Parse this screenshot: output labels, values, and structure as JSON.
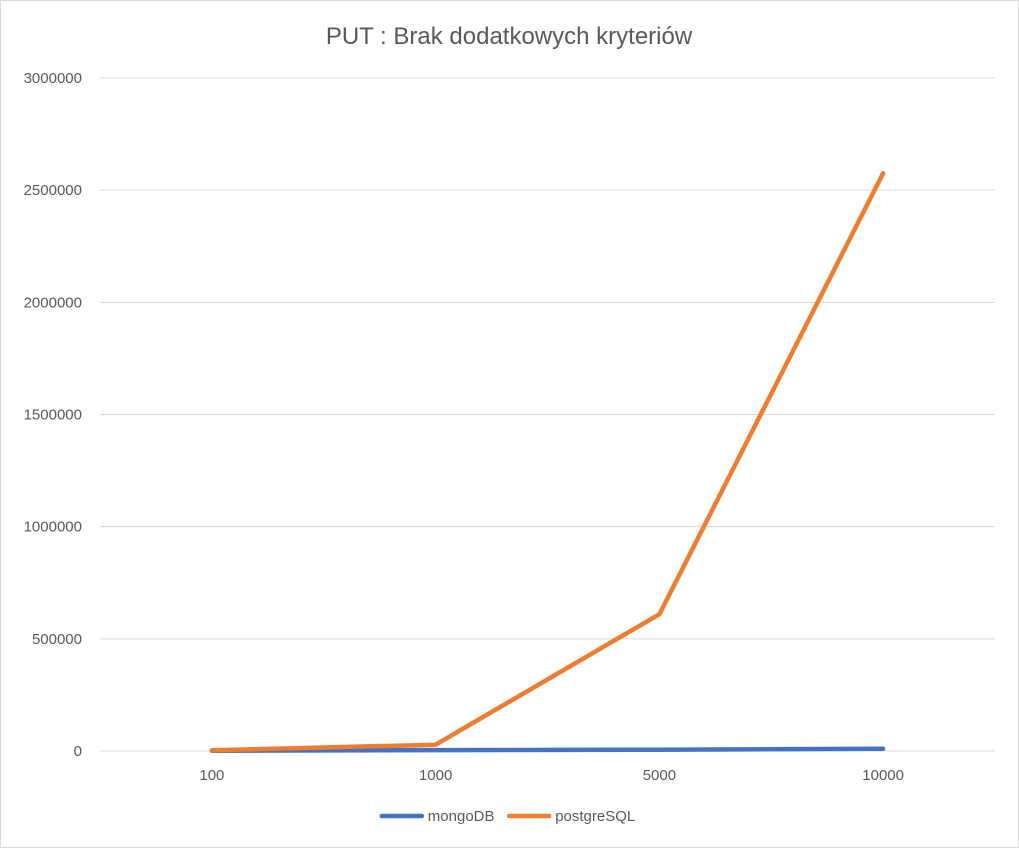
{
  "chart_data": {
    "type": "line",
    "title": "PUT : Brak dodatkowych kryteriów",
    "xlabel": "",
    "ylabel": "",
    "categories": [
      "100",
      "1000",
      "5000",
      "10000"
    ],
    "ylim": [
      0,
      3000000
    ],
    "yticks": [
      0,
      500000,
      1000000,
      1500000,
      2000000,
      2500000,
      3000000
    ],
    "ytick_labels": [
      "0",
      "500000",
      "1000000",
      "1500000",
      "2000000",
      "2500000",
      "3000000"
    ],
    "grid": true,
    "legend_position": "bottom",
    "series": [
      {
        "name": "mongoDB",
        "color": "#4472c4",
        "values": [
          1000,
          4000,
          6000,
          10000
        ]
      },
      {
        "name": "postgreSQL",
        "color": "#ed7d31",
        "values": [
          3000,
          28000,
          610000,
          2575000
        ]
      }
    ]
  }
}
